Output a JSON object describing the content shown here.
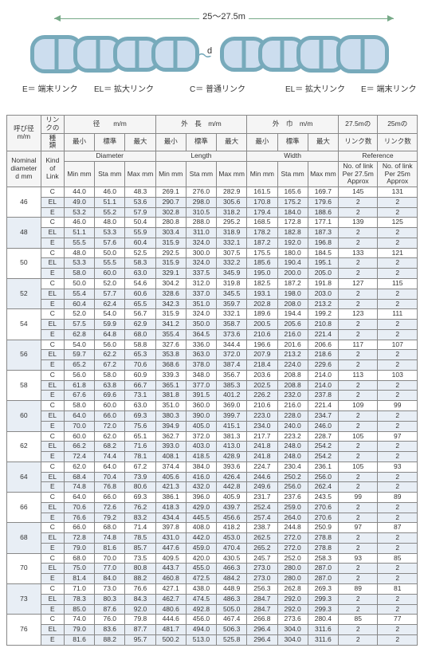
{
  "diagram": {
    "span_label": "25〜27.5m",
    "d_label": "d",
    "labels": {
      "E_left": "E＝ 端末リンク",
      "EL_left": "EL＝ 拡大リンク",
      "C": "C＝ 普通リンク",
      "EL_right": "EL＝ 拡大リンク",
      "E_right": "E＝ 端末リンク"
    }
  },
  "headers": {
    "row1": [
      "呼び径 m/m",
      "リンクの",
      "径　　m/m",
      "外　長　m/m",
      "外　巾　m/m",
      "27.5mの",
      "25mの"
    ],
    "row1b": [
      "種　類",
      "最小",
      "標準",
      "最大",
      "最小",
      "標準",
      "最大",
      "最小",
      "標準",
      "最大",
      "リンク数",
      "リンク数"
    ],
    "row2": [
      "Nominal diameter d mm",
      "Kind of Link",
      "Diameter",
      "Length",
      "Width",
      "Reference"
    ],
    "row2b": [
      "Min mm",
      "Sta mm",
      "Max mm",
      "Min mm",
      "Sta mm",
      "Max mm",
      "Min mm",
      "Sta mm",
      "Max mm",
      "No. of link Per 27.5m Approx",
      "No. of link Per 25m Approx"
    ]
  },
  "kinds": [
    "C",
    "EL",
    "E"
  ],
  "rows": [
    {
      "d": "46",
      "v": [
        [
          "44.0",
          "46.0",
          "48.3",
          "269.1",
          "276.0",
          "282.9",
          "161.5",
          "165.6",
          "169.7",
          "145",
          "131"
        ],
        [
          "49.0",
          "51.1",
          "53.6",
          "290.7",
          "298.0",
          "305.6",
          "170.8",
          "175.2",
          "179.6",
          "2",
          "2"
        ],
        [
          "53.2",
          "55.2",
          "57.9",
          "302.8",
          "310.5",
          "318.2",
          "179.4",
          "184.0",
          "188.6",
          "2",
          "2"
        ]
      ]
    },
    {
      "d": "48",
      "v": [
        [
          "46.0",
          "48.0",
          "50.4",
          "280.8",
          "288.0",
          "295.2",
          "168.5",
          "172.8",
          "177.1",
          "139",
          "125"
        ],
        [
          "51.1",
          "53.3",
          "55.9",
          "303.4",
          "311.0",
          "318.9",
          "178.2",
          "182.8",
          "187.3",
          "2",
          "2"
        ],
        [
          "55.5",
          "57.6",
          "60.4",
          "315.9",
          "324.0",
          "332.1",
          "187.2",
          "192.0",
          "196.8",
          "2",
          "2"
        ]
      ]
    },
    {
      "d": "50",
      "v": [
        [
          "48.0",
          "50.0",
          "52.5",
          "292.5",
          "300.0",
          "307.5",
          "175.5",
          "180.0",
          "184.5",
          "133",
          "121"
        ],
        [
          "53.3",
          "55.5",
          "58.3",
          "315.9",
          "324.0",
          "332.2",
          "185.6",
          "190.4",
          "195.1",
          "2",
          "2"
        ],
        [
          "58.0",
          "60.0",
          "63.0",
          "329.1",
          "337.5",
          "345.9",
          "195.0",
          "200.0",
          "205.0",
          "2",
          "2"
        ]
      ]
    },
    {
      "d": "52",
      "v": [
        [
          "50.0",
          "52.0",
          "54.6",
          "304.2",
          "312.0",
          "319.8",
          "182.5",
          "187.2",
          "191.8",
          "127",
          "115"
        ],
        [
          "55.4",
          "57.7",
          "60.6",
          "328.6",
          "337.0",
          "345.5",
          "193.1",
          "198.0",
          "203.0",
          "2",
          "2"
        ],
        [
          "60.4",
          "62.4",
          "65.5",
          "342.3",
          "351.0",
          "359.7",
          "202.8",
          "208.0",
          "213.2",
          "2",
          "2"
        ]
      ]
    },
    {
      "d": "54",
      "v": [
        [
          "52.0",
          "54.0",
          "56.7",
          "315.9",
          "324.0",
          "332.1",
          "189.6",
          "194.4",
          "199.2",
          "123",
          "111"
        ],
        [
          "57.5",
          "59.9",
          "62.9",
          "341.2",
          "350.0",
          "358.7",
          "200.5",
          "205.6",
          "210.8",
          "2",
          "2"
        ],
        [
          "62.8",
          "64.8",
          "68.0",
          "355.4",
          "364.5",
          "373.6",
          "210.6",
          "216.0",
          "221.4",
          "2",
          "2"
        ]
      ]
    },
    {
      "d": "56",
      "v": [
        [
          "54.0",
          "56.0",
          "58.8",
          "327.6",
          "336.0",
          "344.4",
          "196.6",
          "201.6",
          "206.6",
          "117",
          "107"
        ],
        [
          "59.7",
          "62.2",
          "65.3",
          "353.8",
          "363.0",
          "372.0",
          "207.9",
          "213.2",
          "218.6",
          "2",
          "2"
        ],
        [
          "65.2",
          "67.2",
          "70.6",
          "368.6",
          "378.0",
          "387.4",
          "218.4",
          "224.0",
          "229.6",
          "2",
          "2"
        ]
      ]
    },
    {
      "d": "58",
      "v": [
        [
          "56.0",
          "58.0",
          "60.9",
          "339.3",
          "348.0",
          "356.7",
          "203.6",
          "208.8",
          "214.0",
          "113",
          "103"
        ],
        [
          "61.8",
          "63.8",
          "66.7",
          "365.1",
          "377.0",
          "385.3",
          "202.5",
          "208.8",
          "214.0",
          "2",
          "2"
        ],
        [
          "67.6",
          "69.6",
          "73.1",
          "381.8",
          "391.5",
          "401.2",
          "226.2",
          "232.0",
          "237.8",
          "2",
          "2"
        ]
      ]
    },
    {
      "d": "60",
      "v": [
        [
          "58.0",
          "60.0",
          "63.0",
          "351.0",
          "360.0",
          "369.0",
          "210.6",
          "216.0",
          "221.4",
          "109",
          "99"
        ],
        [
          "64.0",
          "66.0",
          "69.3",
          "380.3",
          "390.0",
          "399.7",
          "223.0",
          "228.0",
          "234.7",
          "2",
          "2"
        ],
        [
          "70.0",
          "72.0",
          "75.6",
          "394.9",
          "405.0",
          "415.1",
          "234.0",
          "240.0",
          "246.0",
          "2",
          "2"
        ]
      ]
    },
    {
      "d": "62",
      "v": [
        [
          "60.0",
          "62.0",
          "65.1",
          "362.7",
          "372.0",
          "381.3",
          "217.7",
          "223.2",
          "228.7",
          "105",
          "97"
        ],
        [
          "66.2",
          "68.2",
          "71.6",
          "393.0",
          "403.0",
          "413.0",
          "241.8",
          "248.0",
          "254.2",
          "2",
          "2"
        ],
        [
          "72.4",
          "74.4",
          "78.1",
          "408.1",
          "418.5",
          "428.9",
          "241.8",
          "248.0",
          "254.2",
          "2",
          "2"
        ]
      ]
    },
    {
      "d": "64",
      "v": [
        [
          "62.0",
          "64.0",
          "67.2",
          "374.4",
          "384.0",
          "393.6",
          "224.7",
          "230.4",
          "236.1",
          "105",
          "93"
        ],
        [
          "68.4",
          "70.4",
          "73.9",
          "405.6",
          "416.0",
          "426.4",
          "244.6",
          "250.2",
          "256.0",
          "2",
          "2"
        ],
        [
          "74.8",
          "76.8",
          "80.6",
          "421.3",
          "432.0",
          "442.8",
          "249.6",
          "256.0",
          "262.4",
          "2",
          "2"
        ]
      ]
    },
    {
      "d": "66",
      "v": [
        [
          "64.0",
          "66.0",
          "69.3",
          "386.1",
          "396.0",
          "405.9",
          "231.7",
          "237.6",
          "243.5",
          "99",
          "89"
        ],
        [
          "70.6",
          "72.6",
          "76.2",
          "418.3",
          "429.0",
          "439.7",
          "252.4",
          "259.0",
          "270.6",
          "2",
          "2"
        ],
        [
          "76.6",
          "79.2",
          "83.2",
          "434.4",
          "445.5",
          "456.6",
          "257.4",
          "264.0",
          "270.6",
          "2",
          "2"
        ]
      ]
    },
    {
      "d": "68",
      "v": [
        [
          "66.0",
          "68.0",
          "71.4",
          "397.8",
          "408.0",
          "418.2",
          "238.7",
          "244.8",
          "250.9",
          "97",
          "87"
        ],
        [
          "72.8",
          "74.8",
          "78.5",
          "431.0",
          "442.0",
          "453.0",
          "262.5",
          "272.0",
          "278.8",
          "2",
          "2"
        ],
        [
          "79.0",
          "81.6",
          "85.7",
          "447.6",
          "459.0",
          "470.4",
          "265.2",
          "272.0",
          "278.8",
          "2",
          "2"
        ]
      ]
    },
    {
      "d": "70",
      "v": [
        [
          "68.0",
          "70.0",
          "73.5",
          "409.5",
          "420.0",
          "430.5",
          "245.7",
          "252.0",
          "258.3",
          "93",
          "85"
        ],
        [
          "75.0",
          "77.0",
          "80.8",
          "443.7",
          "455.0",
          "466.3",
          "273.0",
          "280.0",
          "287.0",
          "2",
          "2"
        ],
        [
          "81.4",
          "84.0",
          "88.2",
          "460.8",
          "472.5",
          "484.2",
          "273.0",
          "280.0",
          "287.0",
          "2",
          "2"
        ]
      ]
    },
    {
      "d": "73",
      "v": [
        [
          "71.0",
          "73.0",
          "76.6",
          "427.1",
          "438.0",
          "448.9",
          "256.3",
          "262.8",
          "269.3",
          "89",
          "81"
        ],
        [
          "78.3",
          "80.3",
          "84.3",
          "462.7",
          "474.5",
          "486.3",
          "284.7",
          "292.0",
          "299.3",
          "2",
          "2"
        ],
        [
          "85.0",
          "87.6",
          "92.0",
          "480.6",
          "492.8",
          "505.0",
          "284.7",
          "292.0",
          "299.3",
          "2",
          "2"
        ]
      ]
    },
    {
      "d": "76",
      "v": [
        [
          "74.0",
          "76.0",
          "79.8",
          "444.6",
          "456.0",
          "467.4",
          "266.8",
          "273.6",
          "280.4",
          "85",
          "77"
        ],
        [
          "79.0",
          "83.6",
          "87.7",
          "481.7",
          "494.0",
          "506.3",
          "296.4",
          "304.0",
          "311.6",
          "2",
          "2"
        ],
        [
          "81.6",
          "88.2",
          "95.7",
          "500.2",
          "513.0",
          "525.8",
          "296.4",
          "304.0",
          "311.6",
          "2",
          "2"
        ]
      ]
    }
  ]
}
